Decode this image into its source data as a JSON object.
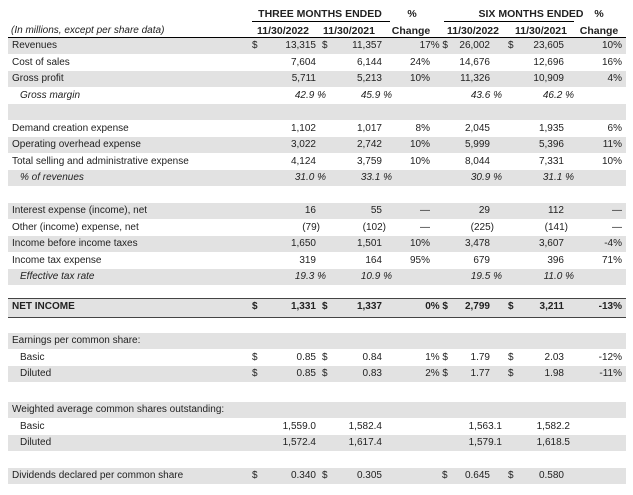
{
  "header": {
    "three_months": "THREE MONTHS ENDED",
    "pct_change": "%",
    "change": "Change",
    "six_months": "SIX MONTHS ENDED",
    "pct_change2": "%",
    "change2": "Change",
    "date_a": "11/30/2022",
    "date_b": "11/30/2021",
    "date_c": "11/30/2022",
    "date_d": "11/30/2021",
    "caption": "(In millions, except per share data)"
  },
  "rows": {
    "revenues": {
      "label": "Revenues",
      "s1": "$",
      "v1": "13,315",
      "s2": "$",
      "v2": "11,357",
      "p1": "17% $",
      "v3": "26,002",
      "s4": "$",
      "v4": "23,605",
      "p2": "10%"
    },
    "cost_of_sales": {
      "label": "Cost of sales",
      "v1": "7,604",
      "v2": "6,144",
      "p1": "24%",
      "v3": "14,676",
      "v4": "12,696",
      "p2": "16%"
    },
    "gross_profit": {
      "label": "Gross profit",
      "v1": "5,711",
      "v2": "5,213",
      "p1": "10%",
      "v3": "11,326",
      "v4": "10,909",
      "p2": "4%"
    },
    "gross_margin": {
      "label": "Gross margin",
      "v1": "42.9 %",
      "v2": "45.9 %",
      "v3": "43.6 %",
      "v4": "46.2 %"
    },
    "demand_creation": {
      "label": "Demand creation expense",
      "v1": "1,102",
      "v2": "1,017",
      "p1": "8%",
      "v3": "2,045",
      "v4": "1,935",
      "p2": "6%"
    },
    "operating_overhead": {
      "label": "Operating overhead expense",
      "v1": "3,022",
      "v2": "2,742",
      "p1": "10%",
      "v3": "5,999",
      "v4": "5,396",
      "p2": "11%"
    },
    "total_sga": {
      "label": "Total selling and administrative expense",
      "v1": "4,124",
      "v2": "3,759",
      "p1": "10%",
      "v3": "8,044",
      "v4": "7,331",
      "p2": "10%"
    },
    "pct_revenues": {
      "label": "% of revenues",
      "v1": "31.0 %",
      "v2": "33.1 %",
      "v3": "30.9 %",
      "v4": "31.1 %"
    },
    "interest_expense": {
      "label": "Interest expense (income), net",
      "v1": "16",
      "v2": "55",
      "p1": "—",
      "v3": "29",
      "v4": "112",
      "p2": "—"
    },
    "other_income": {
      "label": "Other (income) expense, net",
      "v1": "(79)",
      "v2": "(102)",
      "p1": "—",
      "v3": "(225)",
      "v4": "(141)",
      "p2": "—"
    },
    "income_before_tax": {
      "label": "Income before income taxes",
      "v1": "1,650",
      "v2": "1,501",
      "p1": "10%",
      "v3": "3,478",
      "v4": "3,607",
      "p2": "-4%"
    },
    "income_tax": {
      "label": "Income tax expense",
      "v1": "319",
      "v2": "164",
      "p1": "95%",
      "v3": "679",
      "v4": "396",
      "p2": "71%"
    },
    "effective_tax_rate": {
      "label": "Effective tax rate",
      "v1": "19.3 %",
      "v2": "10.9 %",
      "v3": "19.5 %",
      "v4": "11.0 %"
    },
    "net_income": {
      "label": "NET INCOME",
      "s1": "$",
      "v1": "1,331",
      "s2": "$",
      "v2": "1,337",
      "p1": "0% $",
      "v3": "2,799",
      "s4": "$",
      "v4": "3,211",
      "p2": "-13%"
    },
    "eps_heading": {
      "label": "Earnings per common share:"
    },
    "eps_basic": {
      "label": "Basic",
      "s1": "$",
      "v1": "0.85",
      "s2": "$",
      "v2": "0.84",
      "p1": "1% $",
      "v3": "1.79",
      "s4": "$",
      "v4": "2.03",
      "p2": "-12%"
    },
    "eps_diluted": {
      "label": "Diluted",
      "s1": "$",
      "v1": "0.85",
      "s2": "$",
      "v2": "0.83",
      "p1": "2% $",
      "v3": "1.77",
      "s4": "$",
      "v4": "1.98",
      "p2": "-11%"
    },
    "shares_heading": {
      "label": "Weighted average common shares outstanding:"
    },
    "shares_basic": {
      "label": "Basic",
      "v1": "1,559.0",
      "v2": "1,582.4",
      "v3": "1,563.1",
      "v4": "1,582.2"
    },
    "shares_diluted": {
      "label": "Diluted",
      "v1": "1,572.4",
      "v2": "1,617.4",
      "v3": "1,579.1",
      "v4": "1,618.5"
    },
    "dividends": {
      "label": "Dividends declared per common share",
      "s1": "$",
      "v1": "0.340",
      "s2": "$",
      "v2": "0.305",
      "s3": "$",
      "v3": "0.645",
      "s4": "$",
      "v4": "0.580"
    }
  }
}
